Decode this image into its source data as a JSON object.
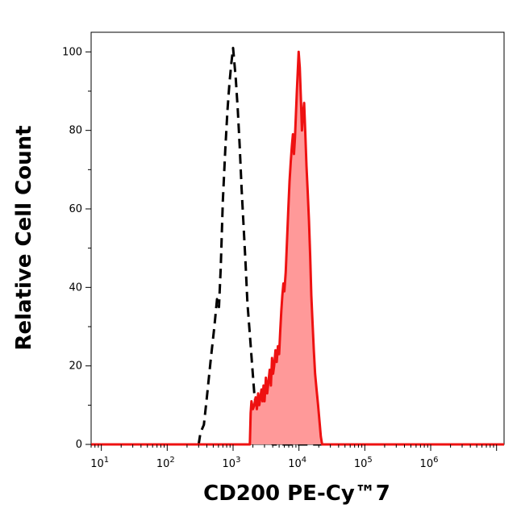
{
  "chart_data": {
    "type": "area",
    "title": "",
    "xlabel": "CD200 PE-Cy™7",
    "ylabel": "Relative Cell Count",
    "x_scale": "log",
    "xlim": [
      7,
      13000000
    ],
    "ylim": [
      0,
      105
    ],
    "x_ticks": [
      {
        "value": 10,
        "base": "10",
        "exp": "1"
      },
      {
        "value": 100,
        "base": "10",
        "exp": "2"
      },
      {
        "value": 1000,
        "base": "10",
        "exp": "3"
      },
      {
        "value": 10000,
        "base": "10",
        "exp": "4"
      },
      {
        "value": 100000,
        "base": "10",
        "exp": "5"
      },
      {
        "value": 1000000,
        "base": "10",
        "exp": "6"
      }
    ],
    "y_ticks": [
      0,
      20,
      40,
      60,
      80,
      100
    ],
    "grid": false,
    "series": [
      {
        "color": "#000000",
        "fill": "none",
        "style": "dashed",
        "points": [
          [
            7,
            0
          ],
          [
            300,
            0
          ],
          [
            320,
            3
          ],
          [
            360,
            5
          ],
          [
            400,
            12
          ],
          [
            460,
            22
          ],
          [
            520,
            30
          ],
          [
            570,
            37
          ],
          [
            610,
            35
          ],
          [
            650,
            45
          ],
          [
            700,
            62
          ],
          [
            760,
            75
          ],
          [
            820,
            85
          ],
          [
            880,
            92
          ],
          [
            940,
            97
          ],
          [
            1000,
            101
          ],
          [
            1050,
            97
          ],
          [
            1100,
            93
          ],
          [
            1180,
            85
          ],
          [
            1260,
            76
          ],
          [
            1350,
            65
          ],
          [
            1450,
            55
          ],
          [
            1550,
            46
          ],
          [
            1650,
            36
          ],
          [
            1800,
            28
          ],
          [
            1950,
            20
          ],
          [
            2100,
            13
          ],
          [
            2300,
            8
          ],
          [
            2500,
            5
          ],
          [
            2800,
            2
          ],
          [
            3200,
            1
          ],
          [
            4000,
            0
          ],
          [
            13000000,
            0
          ]
        ]
      },
      {
        "color": "#ee1111",
        "fill": "#ff9999",
        "style": "solid",
        "points": [
          [
            7,
            0
          ],
          [
            1800,
            0
          ],
          [
            1850,
            8
          ],
          [
            1900,
            11
          ],
          [
            2000,
            9
          ],
          [
            2100,
            10
          ],
          [
            2200,
            12
          ],
          [
            2300,
            9
          ],
          [
            2400,
            13
          ],
          [
            2500,
            10
          ],
          [
            2600,
            12
          ],
          [
            2700,
            14
          ],
          [
            2800,
            11
          ],
          [
            2900,
            15
          ],
          [
            3000,
            11
          ],
          [
            3150,
            17
          ],
          [
            3300,
            13
          ],
          [
            3450,
            16
          ],
          [
            3600,
            19
          ],
          [
            3750,
            15
          ],
          [
            3900,
            22
          ],
          [
            4050,
            18
          ],
          [
            4200,
            20
          ],
          [
            4400,
            24
          ],
          [
            4600,
            21
          ],
          [
            4800,
            25
          ],
          [
            5000,
            23
          ],
          [
            5200,
            29
          ],
          [
            5400,
            34
          ],
          [
            5600,
            38
          ],
          [
            5800,
            41
          ],
          [
            6000,
            39
          ],
          [
            6300,
            44
          ],
          [
            6600,
            52
          ],
          [
            6900,
            60
          ],
          [
            7200,
            67
          ],
          [
            7500,
            72
          ],
          [
            7800,
            76
          ],
          [
            8100,
            79
          ],
          [
            8400,
            74
          ],
          [
            8700,
            78
          ],
          [
            9000,
            84
          ],
          [
            9300,
            90
          ],
          [
            9600,
            95
          ],
          [
            9900,
            100
          ],
          [
            10300,
            96
          ],
          [
            10700,
            88
          ],
          [
            11100,
            80
          ],
          [
            11500,
            84
          ],
          [
            12000,
            87
          ],
          [
            12500,
            79
          ],
          [
            13000,
            71
          ],
          [
            13600,
            64
          ],
          [
            14200,
            57
          ],
          [
            14800,
            48
          ],
          [
            15400,
            38
          ],
          [
            16000,
            32
          ],
          [
            16800,
            24
          ],
          [
            17600,
            18
          ],
          [
            18500,
            14
          ],
          [
            19500,
            10
          ],
          [
            20500,
            6
          ],
          [
            21500,
            2
          ],
          [
            22500,
            0
          ],
          [
            13000000,
            0
          ]
        ]
      }
    ]
  }
}
